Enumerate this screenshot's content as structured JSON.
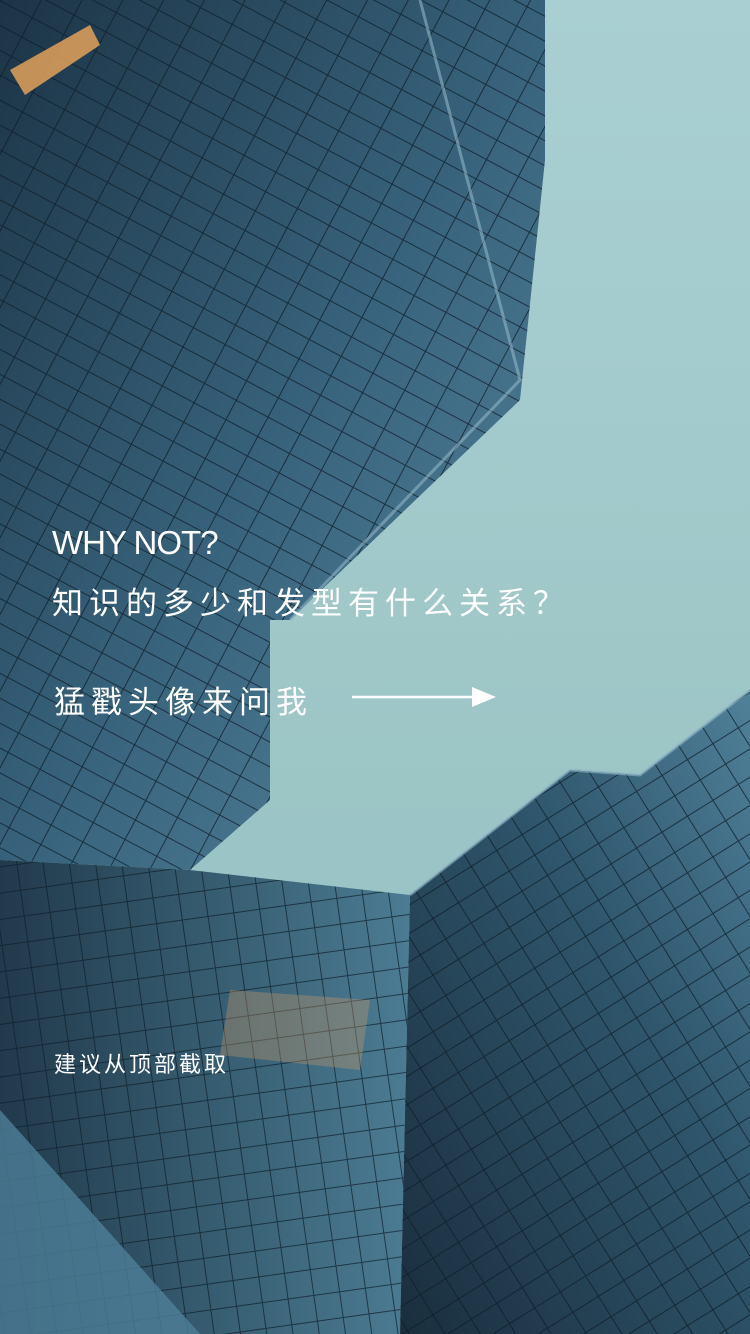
{
  "poster": {
    "headline": "WHY NOT?",
    "question": "知识的多少和发型有什么关系？",
    "cta": "猛戳头像来问我",
    "hint": "建议从顶部截取"
  },
  "colors": {
    "sky": "#9cc4c6",
    "glass_dark": "#1f3c52",
    "glass_mid": "#3d6a84",
    "text": "#ffffff"
  },
  "icons": {
    "arrow": "right-arrow-icon"
  }
}
